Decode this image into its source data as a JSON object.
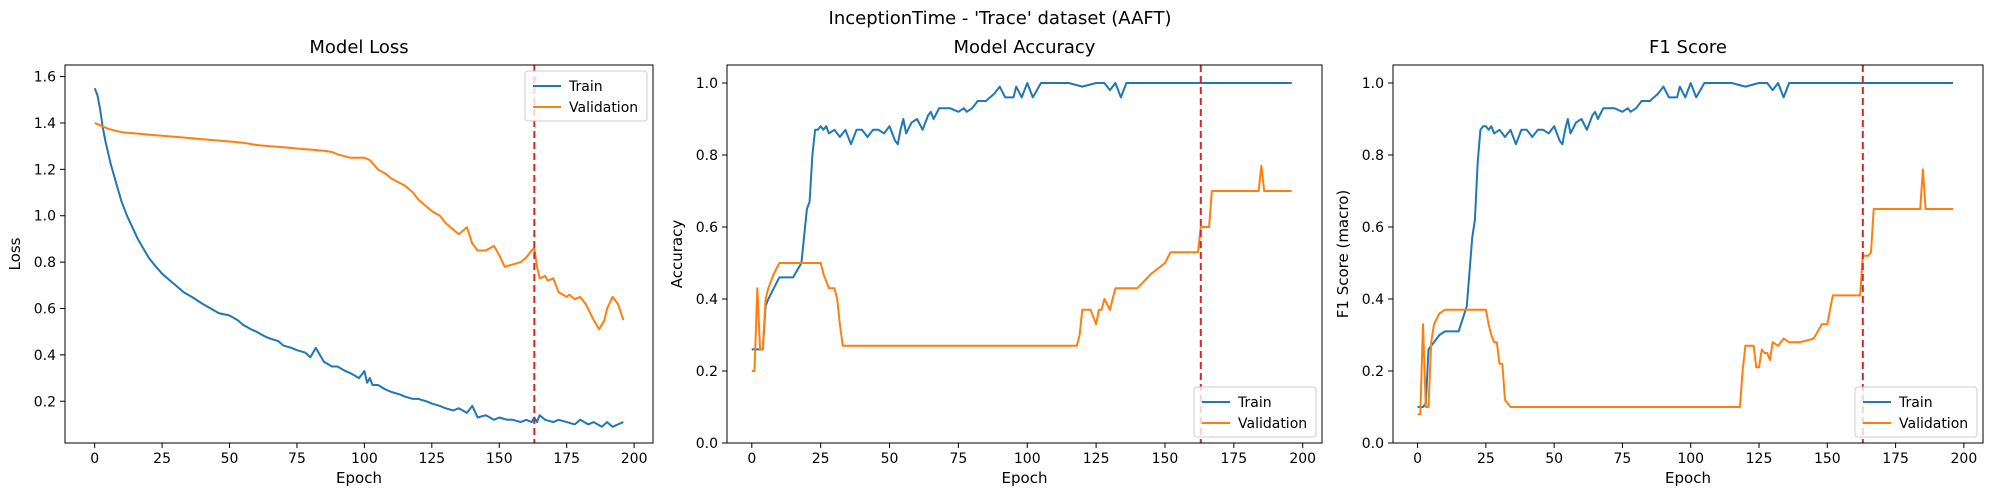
{
  "suptitle": "InceptionTime - 'Trace' dataset (AAFT)",
  "colors": {
    "train": "#1f77b4",
    "validation": "#ff7f0e",
    "marker": "#d62728"
  },
  "chart_data": [
    {
      "type": "line",
      "title": "Model Loss",
      "xlabel": "Epoch",
      "ylabel": "Loss",
      "xlim": [
        -11,
        207
      ],
      "ylim": [
        0.02,
        1.65
      ],
      "xticks": [
        0,
        25,
        50,
        75,
        100,
        125,
        150,
        175,
        200
      ],
      "yticks": [
        0.2,
        0.4,
        0.6,
        0.8,
        1.0,
        1.2,
        1.4,
        1.6
      ],
      "ytick_decimals": 1,
      "legend_position": "top-right",
      "vline_x": 163,
      "series": [
        {
          "name": "Train",
          "x": [
            0,
            1,
            2,
            3,
            4,
            5,
            6,
            7,
            8,
            9,
            10,
            12,
            14,
            16,
            18,
            20,
            22,
            25,
            28,
            30,
            33,
            36,
            40,
            43,
            46,
            50,
            53,
            55,
            58,
            60,
            63,
            65,
            68,
            70,
            73,
            75,
            78,
            80,
            82,
            85,
            88,
            90,
            93,
            95,
            98,
            100,
            101,
            102,
            103,
            105,
            108,
            110,
            113,
            115,
            118,
            120,
            123,
            125,
            128,
            130,
            133,
            135,
            138,
            140,
            142,
            145,
            148,
            150,
            153,
            155,
            158,
            160,
            162,
            163,
            164,
            165,
            167,
            170,
            172,
            175,
            178,
            180,
            183,
            185,
            188,
            190,
            192,
            194,
            196
          ],
          "y": [
            1.55,
            1.52,
            1.46,
            1.38,
            1.32,
            1.27,
            1.22,
            1.18,
            1.14,
            1.1,
            1.06,
            1.0,
            0.95,
            0.9,
            0.86,
            0.82,
            0.79,
            0.75,
            0.72,
            0.7,
            0.67,
            0.65,
            0.62,
            0.6,
            0.58,
            0.57,
            0.55,
            0.53,
            0.51,
            0.5,
            0.48,
            0.47,
            0.46,
            0.44,
            0.43,
            0.42,
            0.41,
            0.39,
            0.43,
            0.37,
            0.35,
            0.35,
            0.33,
            0.32,
            0.3,
            0.33,
            0.28,
            0.3,
            0.27,
            0.27,
            0.25,
            0.24,
            0.23,
            0.22,
            0.21,
            0.21,
            0.2,
            0.19,
            0.18,
            0.17,
            0.16,
            0.17,
            0.15,
            0.18,
            0.13,
            0.14,
            0.12,
            0.13,
            0.12,
            0.12,
            0.11,
            0.12,
            0.11,
            0.13,
            0.11,
            0.14,
            0.12,
            0.11,
            0.12,
            0.11,
            0.1,
            0.12,
            0.1,
            0.11,
            0.09,
            0.11,
            0.09,
            0.1,
            0.11
          ]
        },
        {
          "name": "Validation",
          "x": [
            0,
            5,
            10,
            15,
            20,
            25,
            30,
            35,
            40,
            45,
            50,
            55,
            60,
            65,
            70,
            75,
            80,
            85,
            88,
            90,
            95,
            100,
            102,
            105,
            108,
            110,
            115,
            118,
            120,
            122,
            125,
            128,
            130,
            133,
            135,
            138,
            140,
            142,
            145,
            148,
            150,
            152,
            155,
            158,
            160,
            162,
            163,
            164,
            165,
            167,
            168,
            170,
            172,
            175,
            176,
            178,
            180,
            182,
            185,
            187,
            189,
            190,
            192,
            194,
            196
          ],
          "y": [
            1.4,
            1.375,
            1.36,
            1.355,
            1.35,
            1.345,
            1.34,
            1.335,
            1.33,
            1.325,
            1.32,
            1.315,
            1.305,
            1.3,
            1.295,
            1.29,
            1.285,
            1.28,
            1.275,
            1.265,
            1.25,
            1.25,
            1.24,
            1.2,
            1.18,
            1.16,
            1.13,
            1.1,
            1.07,
            1.05,
            1.02,
            1.0,
            0.97,
            0.94,
            0.92,
            0.95,
            0.88,
            0.85,
            0.85,
            0.87,
            0.83,
            0.78,
            0.79,
            0.8,
            0.82,
            0.85,
            0.86,
            0.78,
            0.73,
            0.74,
            0.72,
            0.73,
            0.67,
            0.65,
            0.66,
            0.64,
            0.65,
            0.62,
            0.55,
            0.51,
            0.55,
            0.6,
            0.65,
            0.62,
            0.55
          ]
        }
      ]
    },
    {
      "type": "line",
      "title": "Model Accuracy",
      "xlabel": "Epoch",
      "ylabel": "Accuracy",
      "xlim": [
        -9,
        207
      ],
      "ylim": [
        0,
        1.05
      ],
      "xticks": [
        0,
        25,
        50,
        75,
        100,
        125,
        150,
        175,
        200
      ],
      "yticks": [
        0.0,
        0.2,
        0.4,
        0.6,
        0.8,
        1.0
      ],
      "ytick_decimals": 1,
      "legend_position": "bottom-right",
      "vline_x": 163,
      "series": [
        {
          "name": "Train",
          "x": [
            0,
            2,
            4,
            5,
            6,
            8,
            10,
            12,
            15,
            18,
            20,
            21,
            22,
            23,
            24,
            25,
            26,
            27,
            28,
            30,
            32,
            34,
            36,
            38,
            40,
            42,
            44,
            46,
            48,
            50,
            52,
            53,
            54,
            55,
            56,
            58,
            60,
            62,
            64,
            65,
            66,
            68,
            70,
            72,
            75,
            77,
            78,
            80,
            82,
            85,
            88,
            90,
            92,
            94,
            95,
            96,
            98,
            100,
            102,
            105,
            108,
            110,
            115,
            120,
            125,
            128,
            130,
            132,
            134,
            136,
            140,
            145,
            150,
            155,
            160,
            165,
            170,
            175,
            180,
            185,
            190,
            196
          ],
          "y": [
            0.26,
            0.26,
            0.26,
            0.38,
            0.4,
            0.43,
            0.46,
            0.46,
            0.46,
            0.5,
            0.65,
            0.67,
            0.8,
            0.87,
            0.87,
            0.88,
            0.87,
            0.88,
            0.86,
            0.87,
            0.85,
            0.87,
            0.83,
            0.87,
            0.87,
            0.85,
            0.87,
            0.87,
            0.86,
            0.88,
            0.84,
            0.83,
            0.87,
            0.9,
            0.86,
            0.89,
            0.9,
            0.87,
            0.91,
            0.92,
            0.9,
            0.93,
            0.93,
            0.93,
            0.92,
            0.93,
            0.92,
            0.93,
            0.95,
            0.95,
            0.97,
            0.99,
            0.96,
            0.96,
            0.96,
            0.99,
            0.96,
            1.0,
            0.96,
            1.0,
            1.0,
            1.0,
            1.0,
            0.99,
            1.0,
            1.0,
            0.98,
            1.0,
            0.96,
            1.0,
            1.0,
            1.0,
            1.0,
            1.0,
            1.0,
            1.0,
            1.0,
            1.0,
            1.0,
            1.0,
            1.0,
            1.0
          ]
        },
        {
          "name": "Validation",
          "x": [
            0,
            1,
            2,
            3,
            4,
            5,
            6,
            8,
            10,
            12,
            15,
            20,
            25,
            26,
            28,
            30,
            31,
            32,
            33,
            34,
            40,
            60,
            80,
            100,
            118,
            119,
            120,
            121,
            122,
            123,
            125,
            126,
            127,
            128,
            130,
            132,
            135,
            140,
            145,
            150,
            152,
            154,
            156,
            158,
            160,
            162,
            163,
            164,
            165,
            166,
            167,
            168,
            170,
            175,
            180,
            184,
            185,
            186,
            188,
            190,
            196
          ],
          "y": [
            0.2,
            0.2,
            0.43,
            0.26,
            0.26,
            0.4,
            0.43,
            0.47,
            0.5,
            0.5,
            0.5,
            0.5,
            0.5,
            0.47,
            0.43,
            0.43,
            0.4,
            0.33,
            0.27,
            0.27,
            0.27,
            0.27,
            0.27,
            0.27,
            0.27,
            0.3,
            0.37,
            0.37,
            0.37,
            0.37,
            0.33,
            0.37,
            0.37,
            0.4,
            0.37,
            0.43,
            0.43,
            0.43,
            0.47,
            0.5,
            0.53,
            0.53,
            0.53,
            0.53,
            0.53,
            0.53,
            0.6,
            0.6,
            0.6,
            0.6,
            0.7,
            0.7,
            0.7,
            0.7,
            0.7,
            0.7,
            0.77,
            0.7,
            0.7,
            0.7,
            0.7
          ]
        }
      ]
    },
    {
      "type": "line",
      "title": "F1 Score",
      "xlabel": "Epoch",
      "ylabel": "F1 Score (macro)",
      "xlim": [
        -9,
        207
      ],
      "ylim": [
        0,
        1.05
      ],
      "xticks": [
        0,
        25,
        50,
        75,
        100,
        125,
        150,
        175,
        200
      ],
      "yticks": [
        0.0,
        0.2,
        0.4,
        0.6,
        0.8,
        1.0
      ],
      "ytick_decimals": 1,
      "legend_position": "bottom-right",
      "vline_x": 163,
      "series": [
        {
          "name": "Train",
          "x": [
            0,
            2,
            3,
            4,
            5,
            6,
            8,
            10,
            12,
            15,
            18,
            20,
            21,
            22,
            23,
            24,
            25,
            26,
            27,
            28,
            30,
            32,
            34,
            36,
            38,
            40,
            42,
            44,
            46,
            48,
            50,
            52,
            53,
            54,
            55,
            56,
            58,
            60,
            62,
            64,
            65,
            66,
            68,
            70,
            72,
            75,
            77,
            78,
            80,
            82,
            85,
            88,
            90,
            92,
            94,
            95,
            96,
            98,
            100,
            102,
            105,
            108,
            110,
            115,
            120,
            125,
            128,
            130,
            132,
            134,
            136,
            140,
            145,
            150,
            155,
            160,
            165,
            170,
            175,
            180,
            185,
            190,
            196
          ],
          "y": [
            0.1,
            0.1,
            0.11,
            0.26,
            0.27,
            0.28,
            0.3,
            0.31,
            0.31,
            0.31,
            0.38,
            0.57,
            0.62,
            0.78,
            0.87,
            0.88,
            0.88,
            0.87,
            0.88,
            0.86,
            0.87,
            0.85,
            0.87,
            0.83,
            0.87,
            0.87,
            0.85,
            0.87,
            0.87,
            0.86,
            0.88,
            0.84,
            0.83,
            0.87,
            0.9,
            0.86,
            0.89,
            0.9,
            0.87,
            0.91,
            0.92,
            0.9,
            0.93,
            0.93,
            0.93,
            0.92,
            0.93,
            0.92,
            0.93,
            0.95,
            0.95,
            0.97,
            0.99,
            0.96,
            0.96,
            0.96,
            0.99,
            0.96,
            1.0,
            0.96,
            1.0,
            1.0,
            1.0,
            1.0,
            0.99,
            1.0,
            1.0,
            0.98,
            1.0,
            0.96,
            1.0,
            1.0,
            1.0,
            1.0,
            1.0,
            1.0,
            1.0,
            1.0,
            1.0,
            1.0,
            1.0,
            1.0,
            1.0
          ]
        },
        {
          "name": "Validation",
          "x": [
            0,
            1,
            2,
            3,
            4,
            5,
            6,
            8,
            10,
            12,
            15,
            20,
            25,
            26,
            27,
            28,
            29,
            30,
            31,
            32,
            33,
            34,
            40,
            60,
            80,
            100,
            118,
            119,
            120,
            121,
            122,
            123,
            124,
            125,
            126,
            127,
            128,
            129,
            130,
            132,
            134,
            136,
            140,
            145,
            148,
            150,
            152,
            154,
            156,
            158,
            160,
            162,
            163,
            164,
            165,
            166,
            167,
            168,
            170,
            175,
            180,
            184,
            185,
            186,
            188,
            190,
            196
          ],
          "y": [
            0.08,
            0.08,
            0.33,
            0.1,
            0.1,
            0.28,
            0.33,
            0.36,
            0.37,
            0.37,
            0.37,
            0.37,
            0.37,
            0.33,
            0.3,
            0.28,
            0.28,
            0.22,
            0.22,
            0.12,
            0.11,
            0.1,
            0.1,
            0.1,
            0.1,
            0.1,
            0.1,
            0.2,
            0.27,
            0.27,
            0.27,
            0.27,
            0.21,
            0.21,
            0.26,
            0.25,
            0.25,
            0.23,
            0.28,
            0.27,
            0.29,
            0.28,
            0.28,
            0.29,
            0.33,
            0.33,
            0.41,
            0.41,
            0.41,
            0.41,
            0.41,
            0.41,
            0.52,
            0.52,
            0.52,
            0.53,
            0.65,
            0.65,
            0.65,
            0.65,
            0.65,
            0.65,
            0.76,
            0.65,
            0.65,
            0.65,
            0.65
          ]
        }
      ]
    }
  ]
}
